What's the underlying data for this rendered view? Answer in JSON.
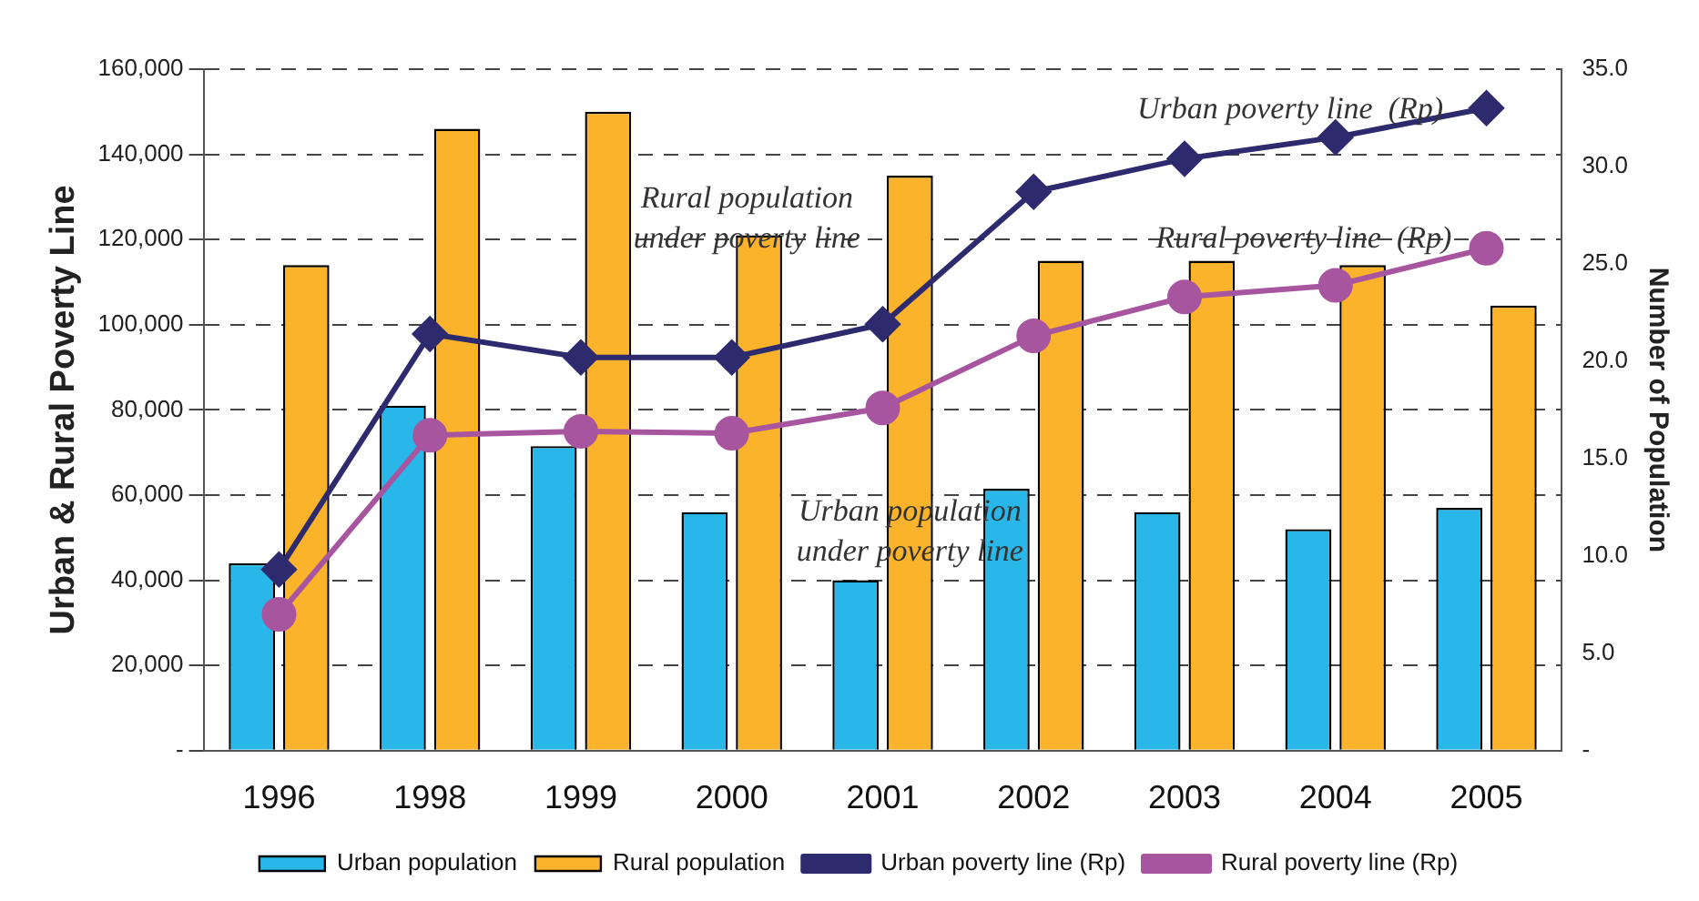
{
  "chart_data": {
    "type": "bar",
    "ylabel": "Urban & Rural Poverty Line",
    "y2label": "Number of Population",
    "categories": [
      "1996",
      "1998",
      "1999",
      "2000",
      "2001",
      "2002",
      "2003",
      "2004",
      "2005"
    ],
    "series": [
      {
        "name": "Urban population",
        "color": "#29b6e8",
        "values": [
          44000,
          81000,
          71500,
          56000,
          40000,
          61500,
          56000,
          52000,
          57000
        ]
      },
      {
        "name": "Rural population",
        "color": "#fbb32b",
        "values": [
          114000,
          146000,
          150000,
          121000,
          135000,
          115000,
          115000,
          114000,
          104500
        ]
      },
      {
        "name": "Urban poverty line (Rp)",
        "type": "line",
        "axis": "y2",
        "color": "#2e2a6e",
        "marker": "diamond",
        "values": [
          9.3,
          21.4,
          20.2,
          20.2,
          21.9,
          28.7,
          30.4,
          31.5,
          33.0
        ]
      },
      {
        "name": "Rural poverty line (Rp)",
        "type": "line",
        "axis": "y2",
        "color": "#a855a0",
        "marker": "circle",
        "values": [
          7.0,
          16.2,
          16.4,
          16.3,
          17.6,
          21.3,
          23.3,
          23.9,
          25.8
        ]
      }
    ],
    "ylim": [
      0,
      160000
    ],
    "yticks": [
      {
        "value": 0,
        "label": "-"
      },
      {
        "value": 20000,
        "label": "20,000"
      },
      {
        "value": 40000,
        "label": "40,000"
      },
      {
        "value": 60000,
        "label": "60,000"
      },
      {
        "value": 80000,
        "label": "80,000"
      },
      {
        "value": 100000,
        "label": "100,000"
      },
      {
        "value": 120000,
        "label": "120,000"
      },
      {
        "value": 140000,
        "label": "140,000"
      },
      {
        "value": 160000,
        "label": "160,000"
      }
    ],
    "y2lim": [
      0,
      35
    ],
    "y2ticks": [
      {
        "value": 0,
        "label": "-"
      },
      {
        "value": 5,
        "label": "5.0"
      },
      {
        "value": 10,
        "label": "10.0"
      },
      {
        "value": 15,
        "label": "15.0"
      },
      {
        "value": 20,
        "label": "20.0"
      },
      {
        "value": 25,
        "label": "25.0"
      },
      {
        "value": 30,
        "label": "30.0"
      },
      {
        "value": 35,
        "label": "35.0"
      }
    ],
    "grid": "y",
    "legend": "bottom",
    "annotations": [
      "Urban poverty line  (Rp)",
      "Rural poverty line  (Rp)",
      "Rural population\nunder poverty line",
      "Urban population\nunder poverty line"
    ]
  }
}
